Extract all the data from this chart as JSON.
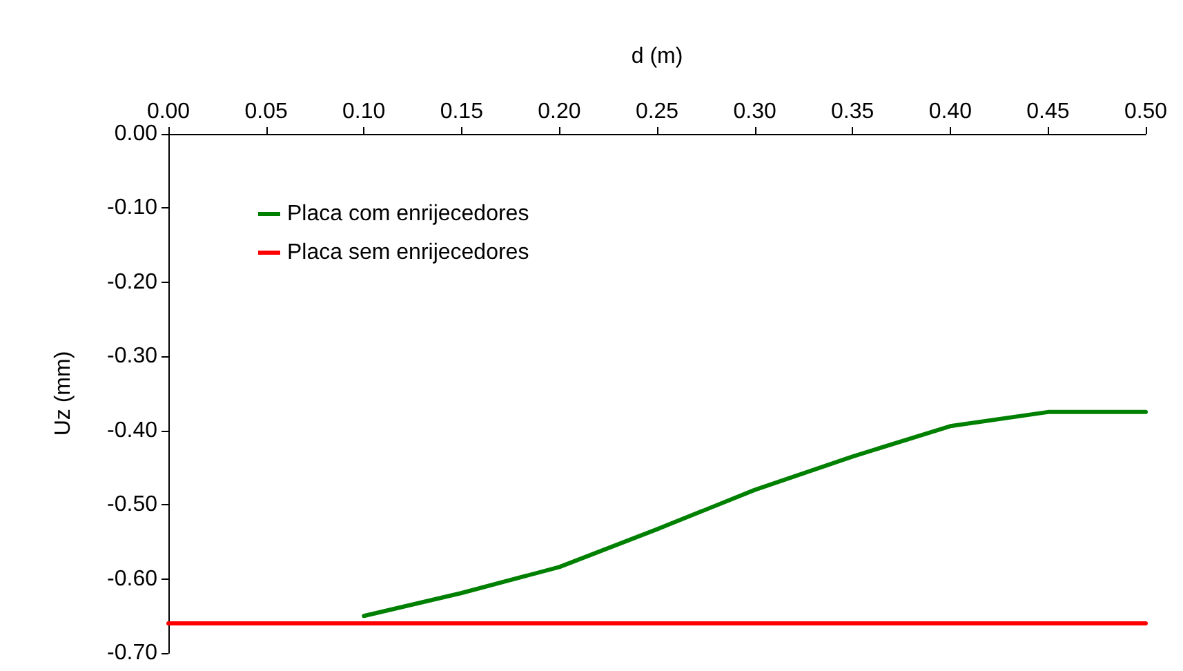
{
  "chart_data": {
    "type": "line",
    "xlabel": "d (m)",
    "ylabel": "Uz (mm)",
    "xlim": [
      0,
      0.5
    ],
    "ylim": [
      -0.7,
      0
    ],
    "xticks": [
      {
        "value": 0,
        "label": "0.00"
      },
      {
        "value": 0.05,
        "label": "0.05"
      },
      {
        "value": 0.1,
        "label": "0.10"
      },
      {
        "value": 0.15,
        "label": "0.15"
      },
      {
        "value": 0.2,
        "label": "0.20"
      },
      {
        "value": 0.25,
        "label": "0.25"
      },
      {
        "value": 0.3,
        "label": "0.30"
      },
      {
        "value": 0.35,
        "label": "0.35"
      },
      {
        "value": 0.4,
        "label": "0.40"
      },
      {
        "value": 0.45,
        "label": "0.45"
      },
      {
        "value": 0.5,
        "label": "0.50"
      }
    ],
    "yticks": [
      {
        "value": 0,
        "label": "0.00"
      },
      {
        "value": -0.1,
        "label": "-0.10"
      },
      {
        "value": -0.2,
        "label": "-0.20"
      },
      {
        "value": -0.3,
        "label": "-0.30"
      },
      {
        "value": -0.4,
        "label": "-0.40"
      },
      {
        "value": -0.5,
        "label": "-0.50"
      },
      {
        "value": -0.6,
        "label": "-0.60"
      },
      {
        "value": -0.7,
        "label": "-0.70"
      }
    ],
    "series": [
      {
        "name": "Placa com enrijecedores",
        "color": "#008000",
        "x": [
          0.1,
          0.15,
          0.2,
          0.25,
          0.3,
          0.35,
          0.4,
          0.45,
          0.5
        ],
        "values": [
          -0.65,
          -0.619,
          -0.584,
          -0.533,
          -0.48,
          -0.435,
          -0.394,
          -0.375,
          -0.375
        ]
      },
      {
        "name": "Placa sem enrijecedores",
        "color": "#ff0000",
        "x": [
          0,
          0.5
        ],
        "values": [
          -0.66,
          -0.66
        ]
      }
    ],
    "legend": "top left",
    "grid": false,
    "marker": "none",
    "line_style": "solid"
  }
}
